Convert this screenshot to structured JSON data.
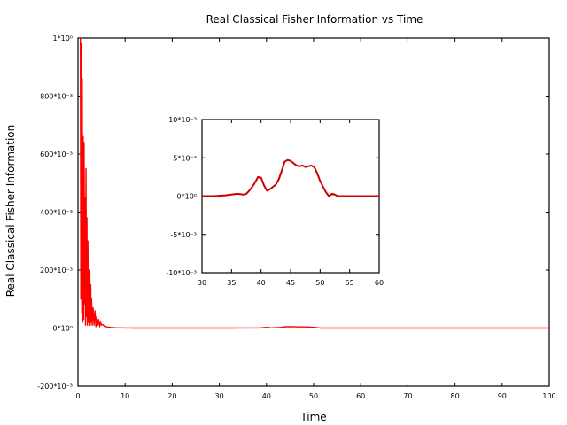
{
  "chart_data": [
    {
      "type": "line",
      "title": "Real Classical Fisher Information vs Time",
      "xlabel": "Time",
      "ylabel": "Real Classical Fisher Information",
      "xlim": [
        0,
        100
      ],
      "ylim": [
        -0.2,
        1.0
      ],
      "x_ticks": [
        0,
        10,
        20,
        30,
        40,
        50,
        60,
        70,
        80,
        90,
        100
      ],
      "x_tick_labels": [
        "0",
        "10",
        "20",
        "30",
        "40",
        "50",
        "60",
        "70",
        "80",
        "90",
        "100"
      ],
      "y_ticks": [
        -0.2,
        0,
        0.2,
        0.4,
        0.6,
        0.8,
        1.0
      ],
      "y_tick_labels": [
        "-200*10⁻³",
        "0*10⁰",
        "200*10⁻³",
        "400*10⁻³",
        "600*10⁻³",
        "800*10⁻³",
        "1*10⁰"
      ],
      "grid": false,
      "line_color": "#ff0000",
      "series": [
        {
          "x": [
            0.5,
            0.6,
            0.7,
            0.8,
            0.9,
            1.0,
            1.1,
            1.2,
            1.3,
            1.4,
            1.5,
            1.6,
            1.7,
            1.8,
            1.9,
            2.0,
            2.1,
            2.2,
            2.3,
            2.4,
            2.5,
            2.6,
            2.7,
            2.8,
            2.9,
            3.0,
            3.2,
            3.4,
            3.6,
            3.8,
            4.0,
            4.2,
            4.4,
            4.6,
            4.8,
            5.0,
            5.3,
            5.6,
            6.0,
            6.5,
            7.0,
            8.0,
            9.0,
            10.0,
            11.0,
            12.0,
            15.0,
            20.0,
            25.0,
            30.0,
            33.0,
            35.0,
            37.0,
            38.0,
            39.0,
            40.0,
            40.5,
            41.0,
            42.0,
            43.0,
            44.0,
            45.0,
            46.0,
            47.0,
            48.0,
            49.0,
            50.0,
            51.0,
            51.5,
            52.0,
            53.0,
            55.0,
            60.0,
            70.0,
            80.0,
            90.0,
            100.0
          ],
          "y": [
            1.0,
            0.1,
            0.98,
            0.05,
            0.86,
            0.02,
            0.66,
            0.03,
            0.64,
            0.08,
            0.45,
            0.01,
            0.55,
            0.04,
            0.38,
            0.01,
            0.3,
            0.02,
            0.22,
            0.01,
            0.2,
            0.01,
            0.15,
            0.02,
            0.1,
            0.01,
            0.07,
            0.01,
            0.06,
            0.005,
            0.04,
            0.01,
            0.03,
            0.005,
            0.02,
            0.01,
            0.012,
            0.006,
            0.005,
            0.003,
            0.002,
            0.001,
            0.0005,
            0.0003,
            0.0002,
            0.0001,
            0.0,
            0.0,
            0.0,
            0.0,
            0.0001,
            0.0002,
            0.0003,
            0.0002,
            0.0008,
            0.0025,
            0.0015,
            0.0007,
            0.0012,
            0.0022,
            0.0045,
            0.0047,
            0.0042,
            0.004,
            0.004,
            0.0038,
            0.0025,
            0.0008,
            0.0001,
            0.0003,
            0.0,
            0.0,
            0.0,
            0.0,
            0.0,
            0.0,
            0.0
          ]
        }
      ]
    },
    {
      "type": "line",
      "title": "",
      "xlabel": "",
      "ylabel": "",
      "xlim": [
        30,
        60
      ],
      "ylim": [
        -0.01,
        0.01
      ],
      "x_ticks": [
        30,
        35,
        40,
        45,
        50,
        55,
        60
      ],
      "x_tick_labels": [
        "30",
        "35",
        "40",
        "45",
        "50",
        "55",
        "60"
      ],
      "y_ticks": [
        -0.01,
        -0.005,
        0,
        0.005,
        0.01
      ],
      "y_tick_labels": [
        "-10*10⁻³",
        "-5*10⁻³",
        "0*10⁰",
        "5*10⁻³",
        "10*10⁻³"
      ],
      "grid": false,
      "line_color": "#cc0000",
      "series": [
        {
          "x": [
            30,
            32,
            34,
            35,
            36,
            37,
            37.5,
            38,
            38.5,
            39,
            39.5,
            40,
            40.5,
            41,
            41.5,
            42,
            42.5,
            43,
            43.5,
            44,
            44.5,
            45,
            45.5,
            46,
            46.5,
            47,
            47.5,
            48,
            48.5,
            49,
            49.5,
            50,
            50.5,
            51,
            51.5,
            52,
            52.5,
            53,
            54,
            56,
            58,
            60
          ],
          "y": [
            0.0,
            0.0,
            0.0001,
            0.0002,
            0.0003,
            0.0002,
            0.0003,
            0.0007,
            0.0012,
            0.0018,
            0.0025,
            0.0024,
            0.0014,
            0.0007,
            0.0009,
            0.0012,
            0.0015,
            0.0022,
            0.0033,
            0.0045,
            0.0047,
            0.0046,
            0.0043,
            0.004,
            0.0039,
            0.004,
            0.0038,
            0.0039,
            0.004,
            0.0038,
            0.003,
            0.002,
            0.0012,
            0.0005,
            0.0,
            0.0003,
            0.0002,
            0.0,
            0.0,
            0.0,
            0.0,
            0.0
          ]
        }
      ]
    }
  ]
}
